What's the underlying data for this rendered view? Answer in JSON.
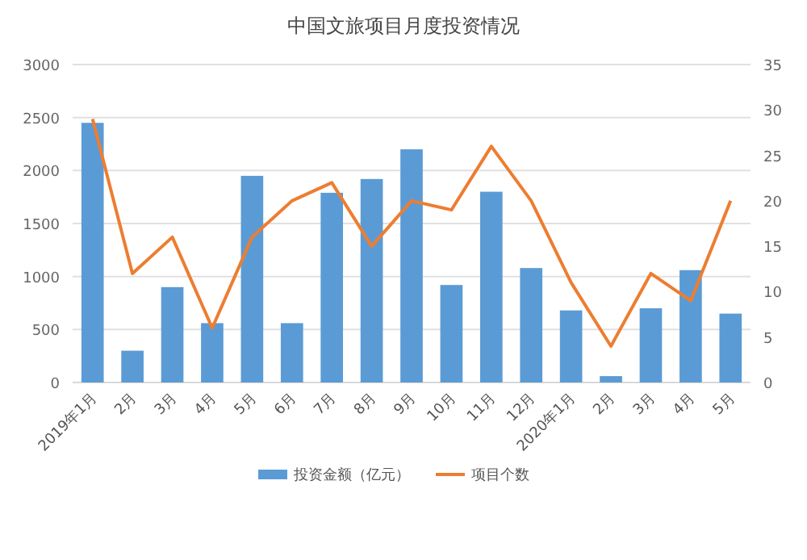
{
  "chart_data": {
    "type": "bar",
    "title": "中国文旅项目月度投资情况",
    "categories": [
      "2019年1月",
      "2月",
      "3月",
      "4月",
      "5月",
      "6月",
      "7月",
      "8月",
      "9月",
      "10月",
      "11月",
      "12月",
      "2020年1月",
      "2月",
      "3月",
      "4月",
      "5月"
    ],
    "series": [
      {
        "name": "投资金额（亿元）",
        "color": "#5b9bd5",
        "values": [
          2450,
          300,
          900,
          560,
          1950,
          560,
          1790,
          1920,
          2200,
          920,
          1800,
          1080,
          680,
          60,
          700,
          1060,
          650
        ]
      },
      {
        "name": "项目个数",
        "type": "line",
        "axis": "y2",
        "color": "#ed7d31",
        "values": [
          29,
          12,
          16,
          6,
          16,
          20,
          22,
          15,
          20,
          19,
          26,
          20,
          11,
          4,
          12,
          9,
          20
        ]
      }
    ],
    "ylim": [
      0,
      3000
    ],
    "yticks": [
      0,
      500,
      1000,
      1500,
      2000,
      2500,
      3000
    ],
    "y2lim": [
      0,
      35
    ],
    "y2ticks": [
      0,
      5,
      10,
      15,
      20,
      25,
      30,
      35
    ],
    "grid": "y",
    "legend": "bottom",
    "marker": "none",
    "line_style": "solid"
  }
}
